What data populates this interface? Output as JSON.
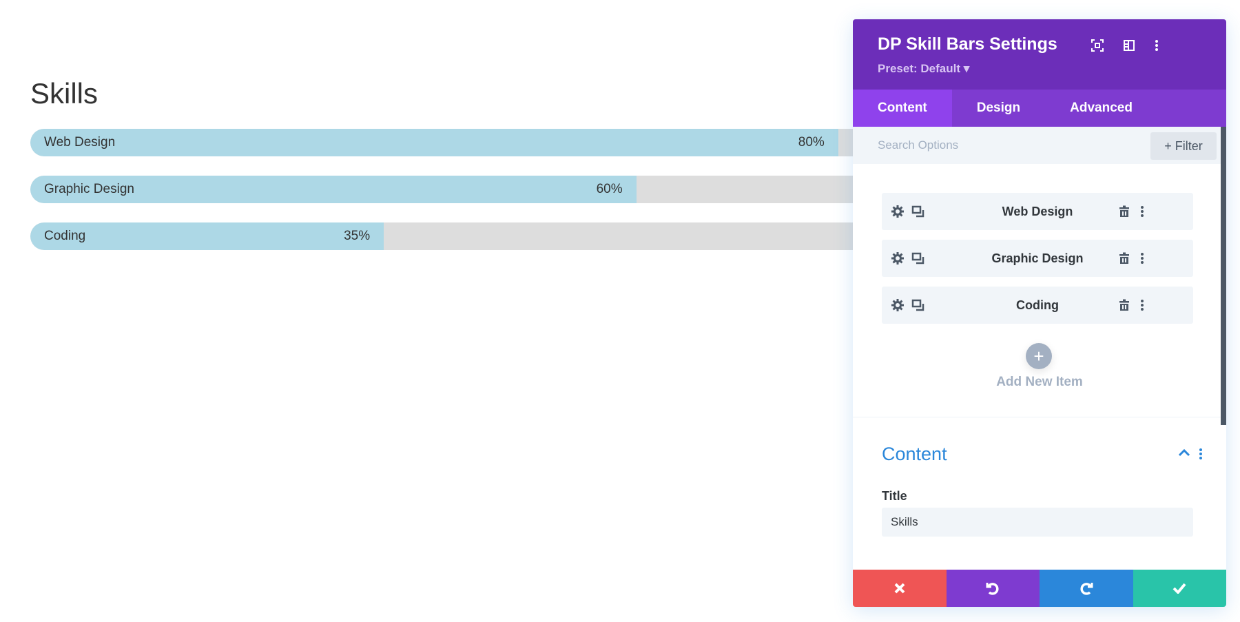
{
  "page": {
    "title": "Skills",
    "skills": [
      {
        "label": "Web Design",
        "percent": 80,
        "text": "80%"
      },
      {
        "label": "Graphic Design",
        "percent": 60,
        "text": "60%"
      },
      {
        "label": "Coding",
        "percent": 35,
        "text": "35%"
      }
    ],
    "colors": {
      "fill": "#add8e6",
      "track": "#dddddd"
    }
  },
  "panel": {
    "title": "DP Skill Bars Settings",
    "preset": "Preset: Default ▾",
    "header_icons": [
      "focus-icon",
      "sidebar-layout-icon",
      "more-vertical-icon"
    ],
    "tabs": [
      {
        "label": "Content",
        "active": true
      },
      {
        "label": "Design"
      },
      {
        "label": "Advanced"
      }
    ],
    "search": {
      "placeholder": "Search Options",
      "filter_label": "+ Filter"
    },
    "items": [
      {
        "label": "Web Design"
      },
      {
        "label": "Graphic Design"
      },
      {
        "label": "Coding"
      }
    ],
    "add_label": "Add New Item",
    "section": {
      "title": "Content",
      "field_label": "Title",
      "field_value": "Skills"
    },
    "footer": [
      {
        "name": "discard",
        "icon": "close-icon",
        "color": "#ef5555"
      },
      {
        "name": "undo",
        "icon": "undo-icon",
        "color": "#7e3bd0"
      },
      {
        "name": "redo",
        "icon": "redo-icon",
        "color": "#2b87da"
      },
      {
        "name": "save",
        "icon": "check-icon",
        "color": "#29c4a9"
      }
    ],
    "colors": {
      "header": "#6c2eb9",
      "tabs": "#7e3bd0",
      "active_tab": "#8f42ec",
      "accent": "#2b87da"
    }
  }
}
